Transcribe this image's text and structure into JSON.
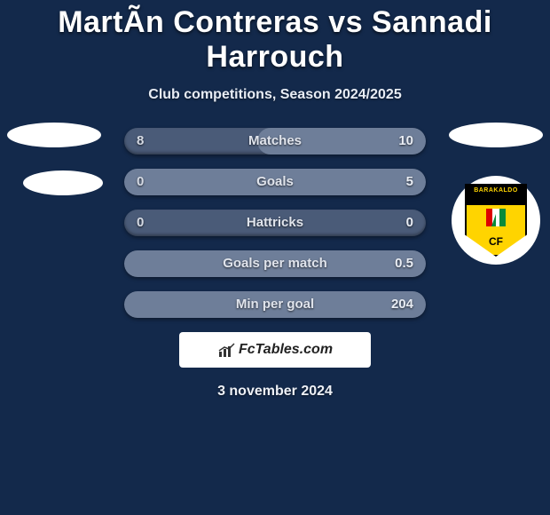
{
  "header": {
    "title": "MartÃ­n Contreras vs Sannadi Harrouch",
    "subtitle": "Club competitions, Season 2024/2025"
  },
  "colors": {
    "page_bg": "#13294b",
    "row_bg": "#4a5b78",
    "row_fill": "#6e7e99",
    "text_primary": "#ffffff",
    "text_muted": "#d6dbe5",
    "crest_yellow": "#ffd400",
    "crest_black": "#000000"
  },
  "stats": {
    "rows": [
      {
        "label": "Matches",
        "left": "8",
        "right": "10",
        "right_fill_pct": 56
      },
      {
        "label": "Goals",
        "left": "0",
        "right": "5",
        "right_fill_pct": 100
      },
      {
        "label": "Hattricks",
        "left": "0",
        "right": "0",
        "right_fill_pct": 0
      },
      {
        "label": "Goals per match",
        "left": "",
        "right": "0.5",
        "right_fill_pct": 100
      },
      {
        "label": "Min per goal",
        "left": "",
        "right": "204",
        "right_fill_pct": 100
      }
    ]
  },
  "crest": {
    "top_text": "BARAKALDO",
    "bottom_text": "CF"
  },
  "footer": {
    "brand": "FcTables.com",
    "date": "3 november 2024"
  }
}
